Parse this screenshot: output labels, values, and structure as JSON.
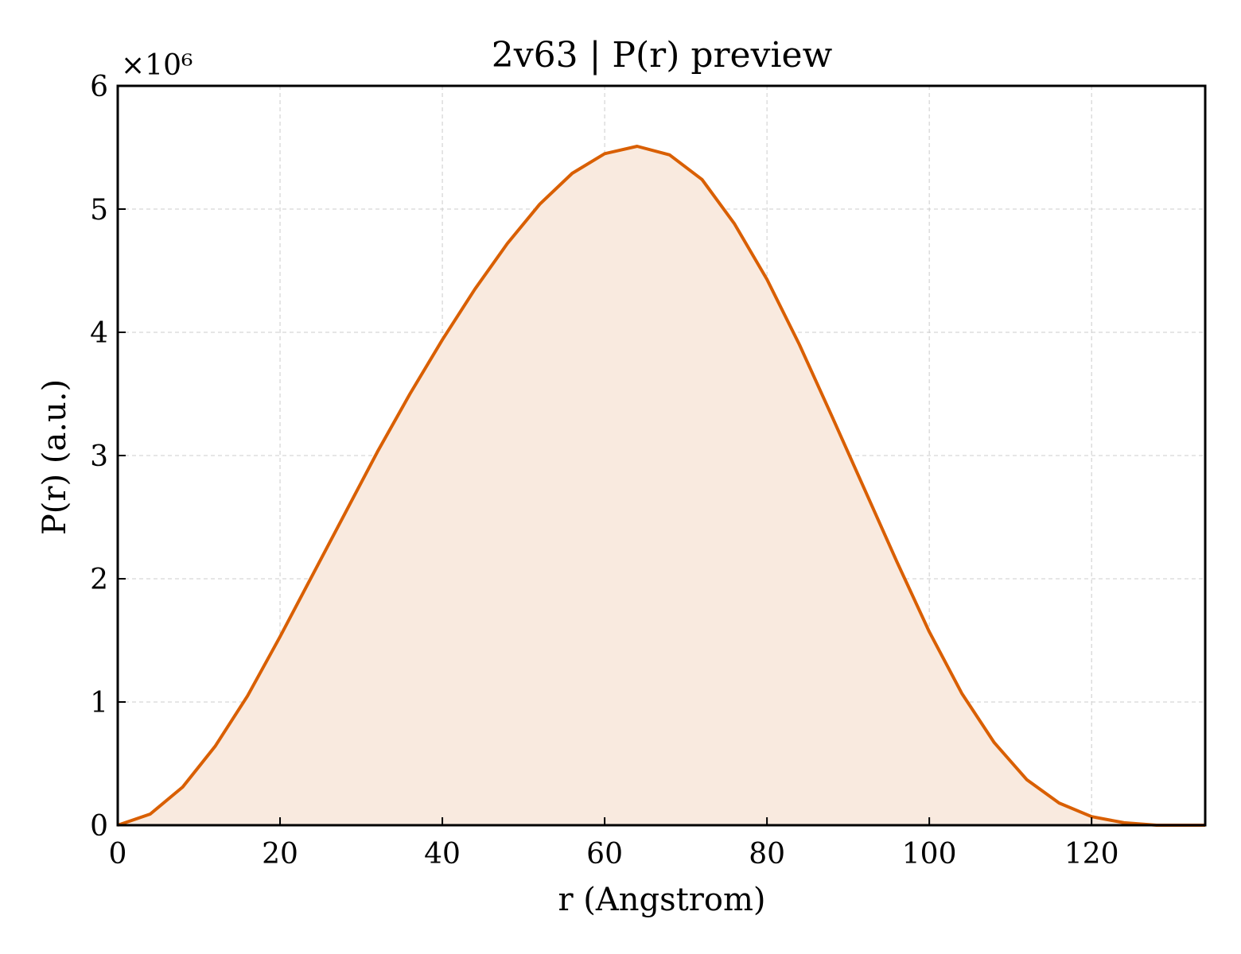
{
  "chart_data": {
    "type": "area",
    "title": "2v63 | P(r) preview",
    "xlabel": "r (Angstrom)",
    "ylabel": "P(r) (a.u.)",
    "y_scale_label": "×10⁶",
    "y_multiplier": 1000000,
    "xlim": [
      0,
      134
    ],
    "ylim": [
      0,
      6
    ],
    "xticks": [
      0,
      20,
      40,
      60,
      80,
      100,
      120
    ],
    "yticks": [
      0,
      1,
      2,
      3,
      4,
      5,
      6
    ],
    "grid": true,
    "legend": "none",
    "colors": {
      "line": "#d95f02",
      "fill": "#f9eadf",
      "grid": "#cccccc",
      "axis": "#000000"
    },
    "series": [
      {
        "x": [
          0,
          4,
          8,
          12,
          16,
          20,
          24,
          28,
          32,
          36,
          40,
          44,
          48,
          52,
          56,
          60,
          64,
          68,
          72,
          76,
          80,
          84,
          88,
          92,
          96,
          100,
          104,
          108,
          112,
          116,
          120,
          124,
          128,
          132,
          134
        ],
        "y": [
          0.0,
          0.09,
          0.31,
          0.64,
          1.05,
          1.53,
          2.03,
          2.53,
          3.03,
          3.5,
          3.94,
          4.35,
          4.72,
          5.04,
          5.29,
          5.45,
          5.51,
          5.44,
          5.24,
          4.88,
          4.43,
          3.9,
          3.32,
          2.73,
          2.14,
          1.57,
          1.07,
          0.67,
          0.37,
          0.18,
          0.07,
          0.02,
          0.0,
          0.0,
          0.0
        ]
      }
    ]
  }
}
